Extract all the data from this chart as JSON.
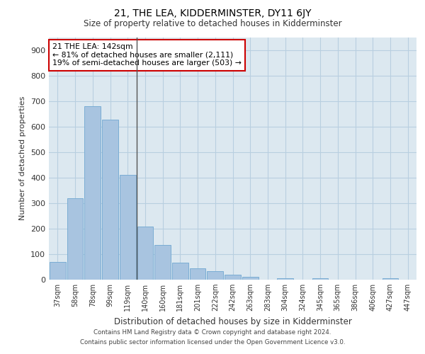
{
  "title": "21, THE LEA, KIDDERMINSTER, DY11 6JY",
  "subtitle": "Size of property relative to detached houses in Kidderminster",
  "xlabel": "Distribution of detached houses by size in Kidderminster",
  "ylabel": "Number of detached properties",
  "categories": [
    "37sqm",
    "58sqm",
    "78sqm",
    "99sqm",
    "119sqm",
    "140sqm",
    "160sqm",
    "181sqm",
    "201sqm",
    "222sqm",
    "242sqm",
    "263sqm",
    "283sqm",
    "304sqm",
    "324sqm",
    "345sqm",
    "365sqm",
    "386sqm",
    "406sqm",
    "427sqm",
    "447sqm"
  ],
  "values": [
    70,
    318,
    680,
    628,
    410,
    207,
    135,
    67,
    45,
    32,
    20,
    12,
    0,
    5,
    0,
    5,
    0,
    0,
    0,
    5,
    0
  ],
  "bar_color": "#a8c4e0",
  "bar_edge_color": "#7aadd4",
  "highlight_line_index": 4,
  "ylim": [
    0,
    950
  ],
  "yticks": [
    0,
    100,
    200,
    300,
    400,
    500,
    600,
    700,
    800,
    900
  ],
  "annotation_text": "21 THE LEA: 142sqm\n← 81% of detached houses are smaller (2,111)\n19% of semi-detached houses are larger (503) →",
  "annotation_box_facecolor": "#ffffff",
  "annotation_box_edgecolor": "#cc0000",
  "grid_color": "#b8cfe0",
  "background_color": "#dce8f0",
  "footer_line1": "Contains HM Land Registry data © Crown copyright and database right 2024.",
  "footer_line2": "Contains public sector information licensed under the Open Government Licence v3.0."
}
